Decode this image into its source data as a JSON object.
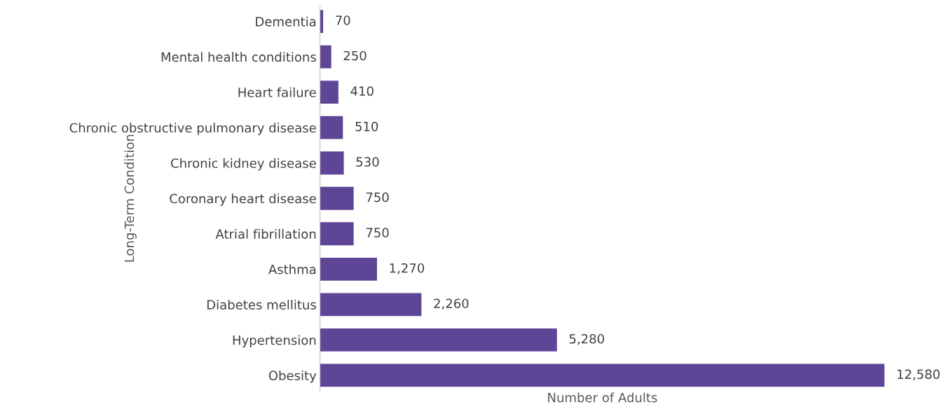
{
  "chart_data": {
    "type": "bar",
    "orientation": "horizontal",
    "xlabel": "Number of Adults",
    "ylabel": "Long-Term Condition",
    "categories": [
      "Dementia",
      "Mental health conditions",
      "Heart failure",
      "Chronic obstructive pulmonary disease",
      "Chronic kidney disease",
      "Coronary heart disease",
      "Atrial fibrillation",
      "Asthma",
      "Diabetes mellitus",
      "Hypertension",
      "Obesity"
    ],
    "values": [
      70,
      250,
      410,
      510,
      530,
      750,
      750,
      1270,
      2260,
      5280,
      12580
    ],
    "value_labels": [
      "70",
      "250",
      "410",
      "510",
      "530",
      "750",
      "750",
      "1,270",
      "2,260",
      "5,280",
      "12,580"
    ],
    "color": "#5e4596",
    "tick_labels": "y",
    "grid": false,
    "legend": false
  }
}
